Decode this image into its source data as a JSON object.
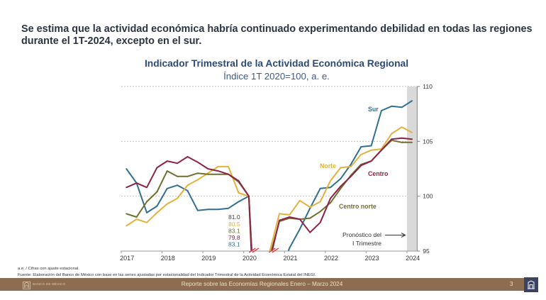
{
  "slide": {
    "headline_lines": [
      "Se estima que la actividad económica habría continuado experimentando debilidad en todas las regiones",
      "durante el 1T-2024, excepto en el sur."
    ],
    "footnotes": [
      "a.e. / Cifras con ajuste estacional.",
      "Fuente: Elaboración del Banco de México con base en las series ajustadas por estacionalidad del Indicador Trimestral de la Actividad Económica Estatal del INEGI."
    ]
  },
  "footer": {
    "brand": "BANCO DE MÉXICO",
    "report_title": "Reporte sobre las Economías Regionales Enero – Marzo 2024",
    "page_number": "3",
    "logo_icon": "banxico-logo-icon",
    "colors": {
      "bar": "#8d6d52",
      "badge": "#3b4262"
    }
  },
  "chart_data": {
    "type": "line",
    "title": "Indicador Trimestral de la Actividad Económica Regional",
    "subtitle": "Índice 1T 2020=100, a. e.",
    "xlabel": "",
    "ylabel": "",
    "x": [
      2017,
      2017.25,
      2017.5,
      2017.75,
      2018,
      2018.25,
      2018.5,
      2018.75,
      2019,
      2019.25,
      2019.5,
      2019.75,
      2020,
      2020.25,
      2020.5,
      2020.75,
      2021,
      2021.25,
      2021.5,
      2021.75,
      2022,
      2022.25,
      2022.5,
      2022.75,
      2023,
      2023.25,
      2023.5,
      2023.75,
      2024
    ],
    "x_tick_labels": [
      "2017",
      "2018",
      "2019",
      "2020",
      "2021",
      "2022",
      "2023",
      "2024"
    ],
    "ylim": [
      95,
      110
    ],
    "y_ticks": [
      95,
      100,
      105,
      110
    ],
    "y_axis_side": "right",
    "grid": true,
    "legend": "inline-labels",
    "series": [
      {
        "name": "Norte",
        "color": "#e3b23c",
        "values": [
          97.3,
          97.9,
          97.6,
          98.5,
          99.3,
          99.8,
          101.0,
          101.5,
          102.1,
          102.7,
          102.7,
          100.3,
          100.0,
          80.5,
          94.8,
          98.4,
          98.3,
          99.6,
          99.0,
          99.5,
          101.4,
          102.6,
          102.7,
          103.8,
          104.2,
          104.3,
          105.7,
          106.3,
          105.8
        ]
      },
      {
        "name": "Centro norte",
        "color": "#6f702e",
        "values": [
          98.4,
          98.1,
          99.5,
          100.4,
          102.3,
          101.8,
          101.8,
          102.1,
          102.0,
          102.0,
          102.0,
          101.3,
          100.0,
          83.1,
          94.3,
          97.7,
          98.0,
          97.9,
          98.0,
          98.6,
          99.4,
          100.7,
          101.9,
          102.9,
          103.2,
          104.2,
          105.1,
          104.9,
          104.9
        ]
      },
      {
        "name": "Centro",
        "color": "#8e2347",
        "values": [
          100.8,
          101.2,
          100.8,
          102.6,
          103.2,
          103.0,
          103.6,
          103.1,
          102.5,
          102.3,
          102.0,
          101.4,
          100.0,
          79.8,
          93.9,
          97.8,
          98.1,
          97.9,
          96.7,
          97.6,
          99.8,
          100.9,
          101.8,
          102.8,
          103.2,
          104.2,
          105.2,
          105.3,
          105.2
        ]
      },
      {
        "name": "Sur",
        "color": "#31708f",
        "values": [
          102.5,
          101.2,
          98.5,
          99.1,
          100.7,
          101.0,
          100.5,
          98.7,
          98.8,
          98.8,
          98.9,
          99.5,
          100.0,
          83.1,
          91.0,
          93.0,
          95.3,
          97.0,
          98.9,
          100.7,
          100.8,
          101.6,
          102.9,
          104.5,
          104.6,
          107.8,
          108.2,
          108.1,
          108.7
        ]
      }
    ],
    "axis_break": {
      "at_x": 2020.25,
      "color": "#e0404e",
      "values": [
        {
          "value": "81.0",
          "color": "#404040"
        },
        {
          "value": "80.5",
          "color": "#e3b23c"
        },
        {
          "value": "83.1",
          "color": "#6f702e"
        },
        {
          "value": "79.8",
          "color": "#8e2347"
        },
        {
          "value": "83.1",
          "color": "#31708f"
        }
      ]
    },
    "forecast": {
      "from_x": 2024,
      "shade_color": "#d9d9d9",
      "label_lines": [
        "Pronóstico del",
        "I Trimestre"
      ]
    }
  }
}
